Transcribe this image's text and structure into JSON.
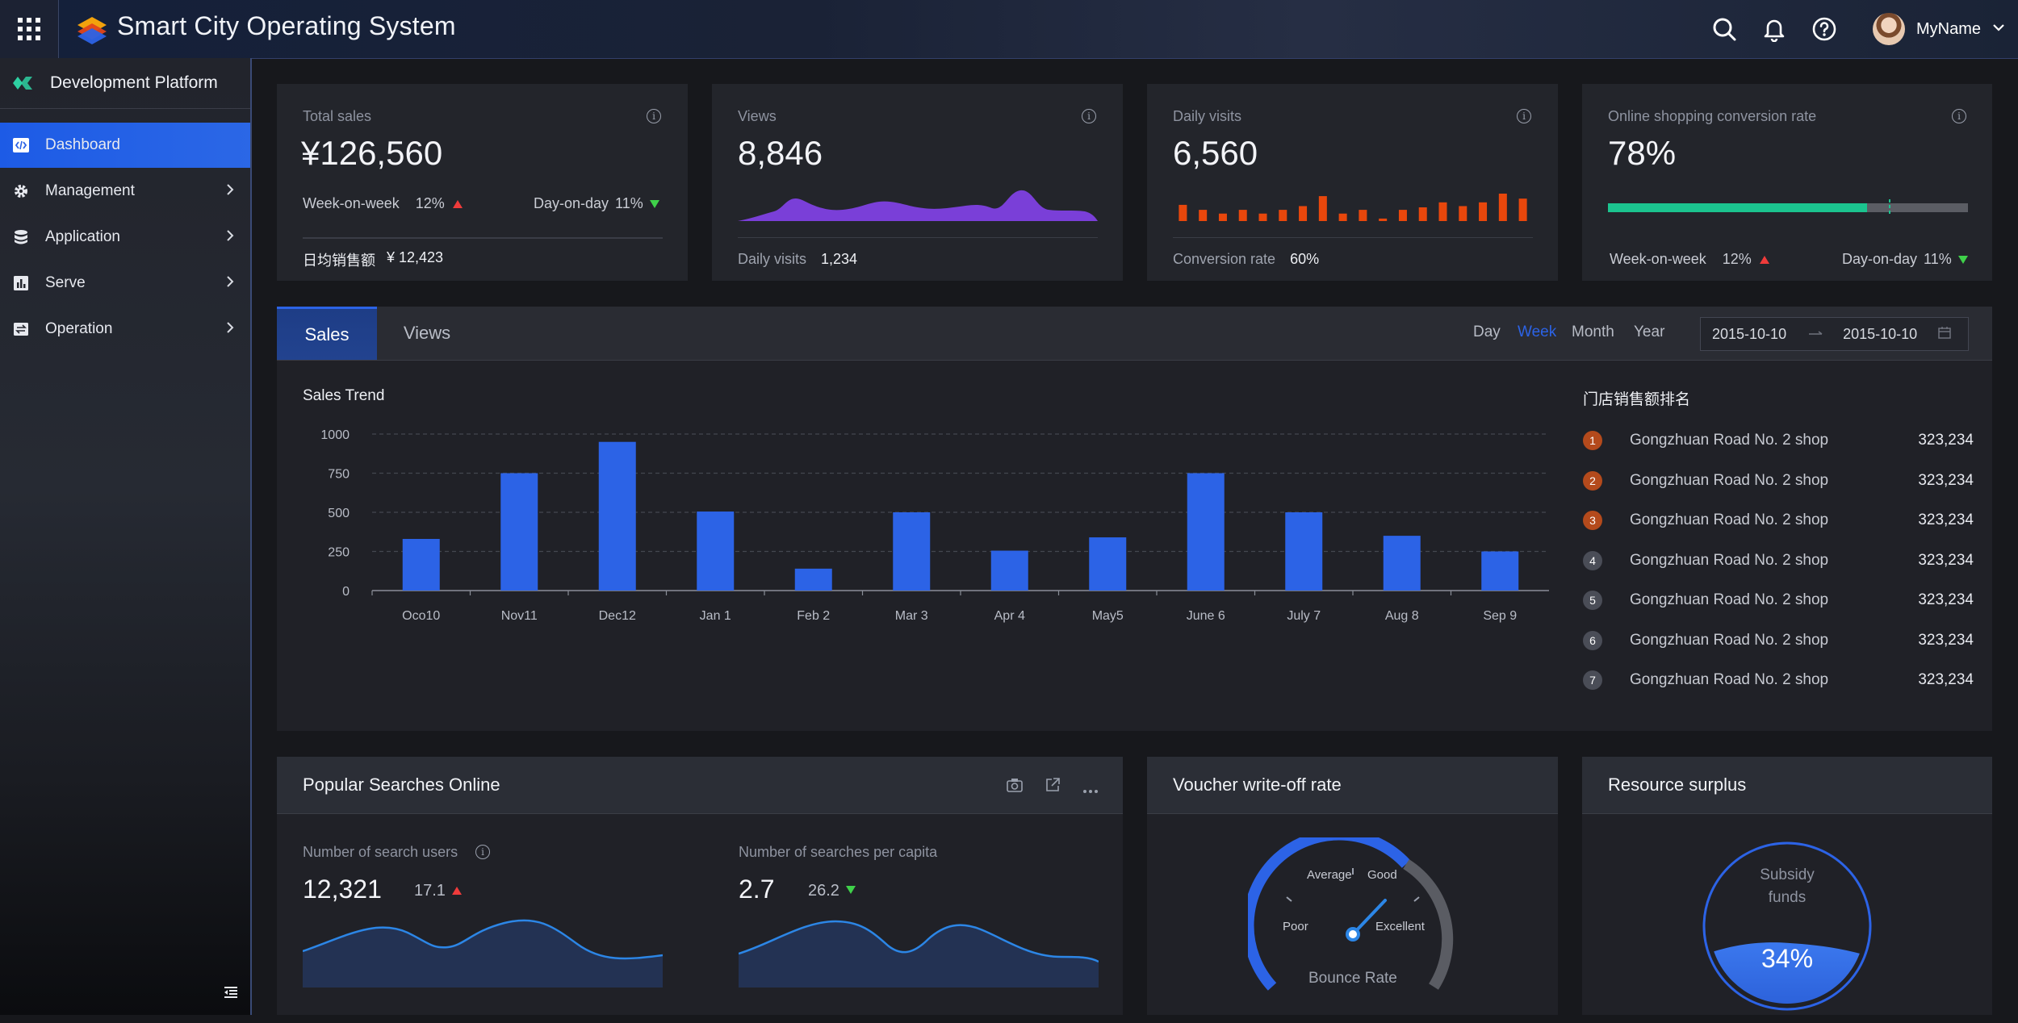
{
  "app": {
    "title": "Smart City Operating System",
    "user_name": "MyName"
  },
  "sidebar": {
    "header": "Development Platform",
    "items": [
      {
        "label": "Dashboard",
        "icon": "code-icon",
        "active": true
      },
      {
        "label": "Management",
        "icon": "gear-icon"
      },
      {
        "label": "Application",
        "icon": "database-icon"
      },
      {
        "label": "Serve",
        "icon": "bar-chart-icon"
      },
      {
        "label": "Operation",
        "icon": "swap-icon"
      }
    ]
  },
  "kpis": {
    "total_sales": {
      "label": "Total sales",
      "value": "¥126,560",
      "wow_label": "Week-on-week",
      "wow_value": "12%",
      "dod_label": "Day-on-day",
      "dod_value": "11%",
      "footer_label": "日均销售额",
      "footer_value": "¥ 12,423"
    },
    "views": {
      "label": "Views",
      "value": "8,846",
      "footer_label": "Daily visits",
      "footer_value": "1,234",
      "spark_color": "#7a3fd8"
    },
    "daily_visits": {
      "label": "Daily visits",
      "value": "6,560",
      "footer_label": "Conversion rate",
      "footer_value": "60%",
      "bar_color": "#e8470c",
      "bars": [
        0.65,
        0.45,
        0.3,
        0.45,
        0.3,
        0.45,
        0.6,
        1.0,
        0.3,
        0.45,
        0.1,
        0.45,
        0.55,
        0.75,
        0.6,
        0.75,
        1.1,
        0.9
      ]
    },
    "conversion": {
      "label": "Online shopping conversion rate",
      "value": "78%",
      "progress": 0.72,
      "target": 0.78,
      "progress_color": "#1bc48f",
      "wow_label": "Week-on-week",
      "wow_value": "12%",
      "dod_label": "Day-on-day",
      "dod_value": "11%"
    }
  },
  "sales_panel": {
    "tabs": [
      "Sales",
      "Views"
    ],
    "range_options": [
      "Day",
      "Week",
      "Month",
      "Year"
    ],
    "active_range": "Week",
    "date_start": "2015-10-10",
    "date_end": "2015-10-10",
    "chart_title": "Sales Trend",
    "ranking_title": "门店销售额排名",
    "ranking": [
      {
        "rank": "1",
        "name": "Gongzhuan Road No. 2 shop",
        "value": "323,234"
      },
      {
        "rank": "2",
        "name": "Gongzhuan Road No. 2 shop",
        "value": "323,234"
      },
      {
        "rank": "3",
        "name": "Gongzhuan Road No. 2 shop",
        "value": "323,234"
      },
      {
        "rank": "4",
        "name": "Gongzhuan Road No. 2 shop",
        "value": "323,234"
      },
      {
        "rank": "5",
        "name": "Gongzhuan Road No. 2 shop",
        "value": "323,234"
      },
      {
        "rank": "6",
        "name": "Gongzhuan Road No. 2 shop",
        "value": "323,234"
      },
      {
        "rank": "7",
        "name": "Gongzhuan Road No. 2 shop",
        "value": "323,234"
      }
    ],
    "colors": {
      "accent": "#2c63e6",
      "top_rank": "#b44a1c",
      "other_rank": "#4a4d57"
    }
  },
  "chart_data": {
    "type": "bar",
    "title": "Sales Trend",
    "categories": [
      "Oco10",
      "Nov11",
      "Dec12",
      "Jan 1",
      "Feb 2",
      "Mar 3",
      "Apr 4",
      "May5",
      "June 6",
      "July 7",
      "Aug 8",
      "Sep 9"
    ],
    "values": [
      330,
      750,
      950,
      505,
      140,
      500,
      255,
      340,
      750,
      500,
      350,
      250
    ],
    "yticks": [
      0,
      250,
      500,
      750,
      1000
    ],
    "ylim": [
      0,
      1000
    ],
    "grid": true,
    "color": "#2c63e6"
  },
  "searches": {
    "title": "Popular Searches Online",
    "users_label": "Number of search users",
    "users_value": "12,321",
    "users_change": "17.1",
    "per_capita_label": "Number of searches per capita",
    "per_capita_value": "2.7",
    "per_capita_change": "26.2"
  },
  "voucher": {
    "title": "Voucher write-off rate",
    "labels": {
      "poor": "Poor",
      "average": "Average",
      "good": "Good",
      "excellent": "Excellent"
    },
    "caption": "Bounce Rate"
  },
  "resource": {
    "title": "Resource surplus",
    "label": "Subsidy funds",
    "value": "34%",
    "fill": 0.34
  }
}
